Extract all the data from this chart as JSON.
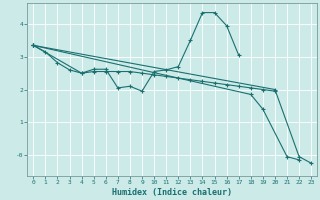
{
  "title": "",
  "xlabel": "Humidex (Indice chaleur)",
  "ylabel": "",
  "bg_color": "#cceae8",
  "line_color": "#1a7070",
  "grid_color": "#ffffff",
  "xlim": [
    -0.5,
    23.5
  ],
  "ylim": [
    -0.65,
    4.65
  ],
  "xticks": [
    0,
    1,
    2,
    3,
    4,
    5,
    6,
    7,
    8,
    9,
    10,
    11,
    12,
    13,
    14,
    15,
    16,
    17,
    18,
    19,
    20,
    21,
    22,
    23
  ],
  "yticks": [
    0,
    1,
    2,
    3,
    4
  ],
  "ytick_labels": [
    "-0",
    "1",
    "2",
    "3",
    "4"
  ],
  "line1_x": [
    0,
    1,
    2,
    3,
    4,
    5,
    6,
    7,
    8,
    9,
    10,
    11,
    12,
    13,
    14,
    15,
    16,
    17
  ],
  "line1_y": [
    3.35,
    3.15,
    2.82,
    2.6,
    2.5,
    2.62,
    2.62,
    2.05,
    2.1,
    1.95,
    2.55,
    2.6,
    2.7,
    3.5,
    4.35,
    4.35,
    3.95,
    3.05
  ],
  "line2_x": [
    0,
    4,
    5,
    6,
    7,
    8,
    9,
    10,
    11,
    12,
    13,
    14,
    15,
    16,
    17,
    18,
    19,
    20
  ],
  "line2_y": [
    3.35,
    2.5,
    2.55,
    2.55,
    2.55,
    2.55,
    2.5,
    2.45,
    2.4,
    2.35,
    2.3,
    2.25,
    2.2,
    2.15,
    2.1,
    2.05,
    2.0,
    1.95
  ],
  "line3_x": [
    0,
    18,
    19,
    21,
    22
  ],
  "line3_y": [
    3.35,
    1.85,
    1.4,
    -0.05,
    -0.15
  ],
  "line4_x": [
    0,
    20,
    22,
    23
  ],
  "line4_y": [
    3.35,
    2.0,
    -0.05,
    -0.25
  ]
}
